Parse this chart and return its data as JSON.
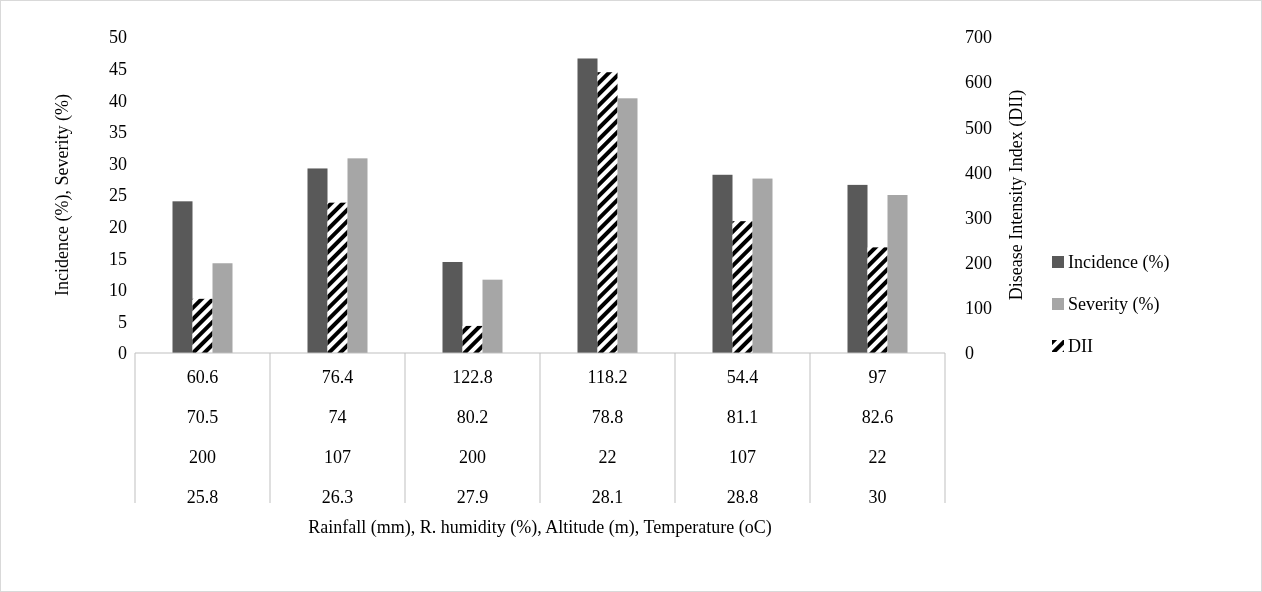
{
  "chart_data": {
    "type": "bar",
    "xlabel": "Rainfall (mm), R. humidity (%),  Altitude (m), Temperature (oC)",
    "ylabel": "Incidence (%), Severity (%)",
    "y2label": "Disease Intensity Index (DII)",
    "categories": [
      "60.6\n70.5\n200\n25.8",
      "76.4\n74\n107\n26.3",
      "122.8\n80.2\n200\n27.9",
      "118.2\n78.8\n22\n28.1",
      "54.4\n81.1\n107\n28.8",
      "97\n82.6\n22\n30"
    ],
    "series": [
      {
        "name": "Incidence (%)",
        "color": "#595959",
        "values": [
          24,
          29.2,
          14.4,
          46.6,
          28.2,
          26.6
        ]
      },
      {
        "name": "DII",
        "color": "#000000",
        "axis": "y2",
        "values": [
          120,
          333,
          60,
          622,
          292,
          234
        ]
      },
      {
        "name": "Severity (%)",
        "color": "#a6a6a6",
        "values": [
          14.2,
          30.8,
          11.6,
          40.3,
          27.6,
          25
        ]
      }
    ],
    "ylim": [
      0,
      50
    ],
    "yticks": [
      0,
      5,
      10,
      15,
      20,
      25,
      30,
      35,
      40,
      45,
      50
    ],
    "y2lim": [
      0,
      700
    ],
    "y2ticks": [
      0,
      100,
      200,
      300,
      400,
      500,
      600,
      700
    ],
    "legend": "right"
  }
}
